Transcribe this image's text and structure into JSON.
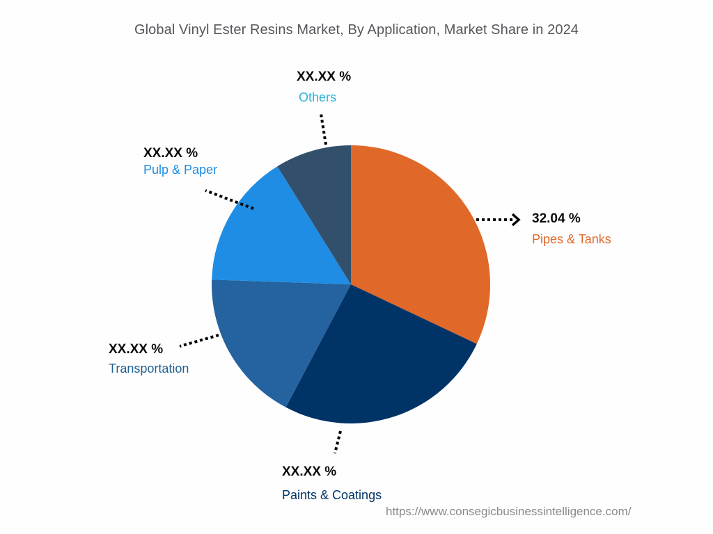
{
  "title": "Global Vinyl Ester Resins Market, By Application, Market Share in 2024",
  "watermark": "https://www.consegicbusinessintelligence.com/",
  "labels": {
    "pipes_tanks": {
      "pct": "32.04 %",
      "name": "Pipes & Tanks",
      "color": "#e0692a"
    },
    "paints_coatings": {
      "pct": "XX.XX %",
      "name": "Paints & Coatings",
      "color": "#003366"
    },
    "transportation": {
      "pct": "XX.XX %",
      "name": "Transportation",
      "color": "#1f5f99"
    },
    "pulp_paper": {
      "pct": "XX.XX %",
      "name": "Pulp & Paper",
      "color": "#1e8de3"
    },
    "others": {
      "pct": "XX.XX %",
      "name": "Others",
      "color": "#2ab0d8"
    }
  },
  "chart_data": {
    "type": "pie",
    "title": "Global Vinyl Ester Resins Market, By Application, Market Share in 2024",
    "categories": [
      "Pipes & Tanks",
      "Paints & Coatings",
      "Transportation",
      "Pulp & Paper",
      "Others"
    ],
    "values": [
      32.04,
      25.7,
      17.8,
      15.6,
      8.86
    ],
    "displayed_labels": [
      "32.04 %",
      "XX.XX %",
      "XX.XX %",
      "XX.XX %",
      "XX.XX %"
    ],
    "colors": [
      "#e0692a",
      "#003366",
      "#2462a0",
      "#1e8de3",
      "#324f6b"
    ],
    "start_angle_deg": 0,
    "direction": "clockwise",
    "legend": "none (callout labels)"
  }
}
